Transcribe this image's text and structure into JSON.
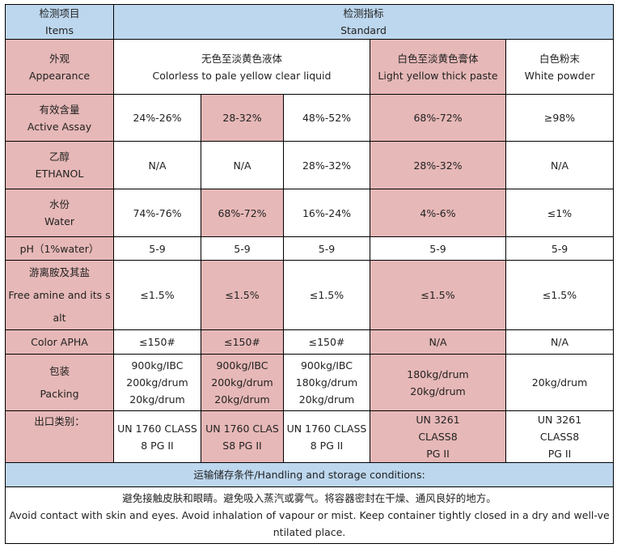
{
  "header": {
    "items_cn": "检测项目",
    "items_en": "Items",
    "standard_cn": "检测指标",
    "standard_en": "Standard"
  },
  "appearance": {
    "label_cn": "外观",
    "label_en": "Appearance",
    "liquid_cn": "无色至淡黄色液体",
    "liquid_en": "Colorless to pale yellow clear liquid",
    "paste_cn": "白色至淡黄色膏体",
    "paste_en": "Light yellow thick paste",
    "powder_cn": "白色粉末",
    "powder_en": "White powder"
  },
  "active": {
    "label_cn": "有效含量",
    "label_en": "Active Assay",
    "values": [
      "24%-26%",
      "28-32%",
      "48%-52%",
      "68%-72%",
      "≥98%"
    ]
  },
  "ethanol": {
    "label_cn": "乙醇",
    "label_en": "ETHANOL",
    "values": [
      "N/A",
      "N/A",
      "28%-32%",
      "28%-32%",
      "N/A"
    ]
  },
  "water": {
    "label_cn": "水份",
    "label_en": "Water",
    "values": [
      "74%-76%",
      "68%-72%",
      "16%-24%",
      "4%-6%",
      "≤1%"
    ]
  },
  "ph": {
    "label": "pH（1%water）",
    "values": [
      "5-9",
      "5-9",
      "5-9",
      "5-9",
      "5-9"
    ]
  },
  "amine": {
    "label_cn": "游离胺及其盐",
    "label_en": "Free amine and its salt",
    "values": [
      "≤1.5%",
      "≤1.5%",
      "≤1.5%",
      "≤1.5%",
      "≤1.5%"
    ]
  },
  "color": {
    "label": "Color APHA",
    "values": [
      "≤150#",
      "≤150#",
      "≤150#",
      "N/A",
      "N/A"
    ]
  },
  "packing": {
    "label_cn": "包装",
    "label_en": "Packing",
    "col1": [
      "900kg/IBC",
      "200kg/drum",
      "20kg/drum"
    ],
    "col2": [
      "900kg/IBC",
      "200kg/drum",
      "20kg/drum"
    ],
    "col3": [
      "900kg/IBC",
      "180kg/drum",
      "20kg/drum"
    ],
    "col4": [
      "180kg/drum",
      "20kg/drum"
    ],
    "col5": [
      "20kg/drum"
    ]
  },
  "export": {
    "label": "出口类别：",
    "col1": "UN 1760 CLASS8 PG II",
    "col2": "UN 1760 CLASS8 PG II",
    "col3": "UN 1760 CLASS8 PG II",
    "col4": [
      "UN 3261",
      "CLASS8",
      "PG II"
    ],
    "col5": [
      "UN 3261",
      "CLASS8",
      "PG II"
    ]
  },
  "storage": {
    "header": "运输储存条件/Handling and storage conditions:",
    "text_cn": "避免接触皮肤和眼睛。避免吸入蒸汽或雾气。将容器密封在干燥、通风良好的地方。",
    "text_en": "Avoid contact with skin and eyes. Avoid inhalation of vapour or mist. Keep container tightly closed in a dry and well-ventilated place."
  },
  "colors": {
    "header_blue": "#bdd7ee",
    "highlight_pink": "#e6b8b7",
    "border": "#000000"
  }
}
